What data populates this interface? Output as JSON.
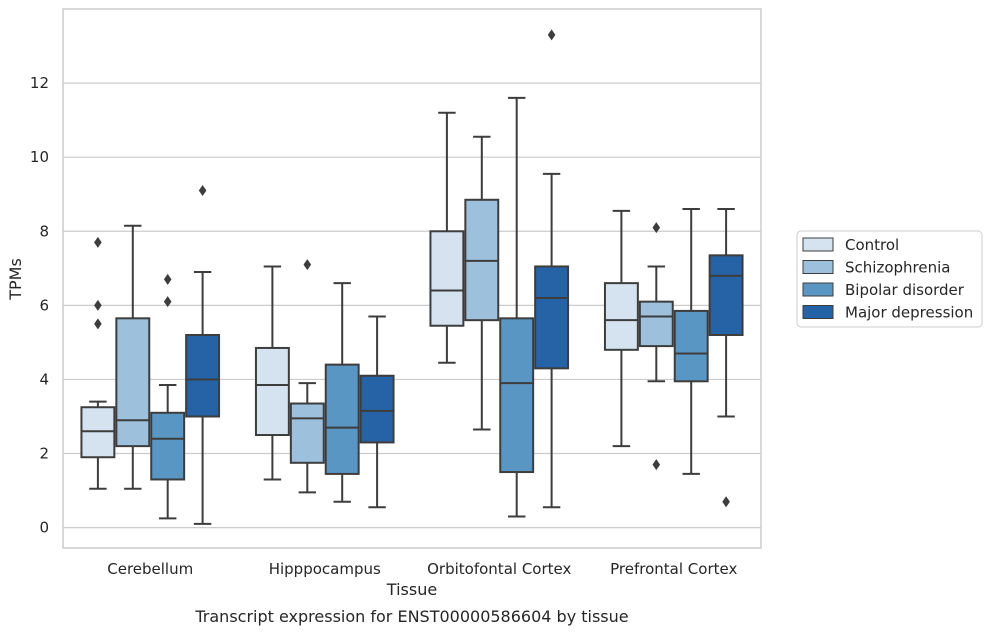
{
  "chart_data": {
    "type": "box",
    "xlabel": "Tissue",
    "ylabel": "TPMs",
    "caption": "Transcript expression for ENST00000586604 by tissue",
    "ylim": [
      -0.55,
      14.0
    ],
    "yticks": [
      0,
      2,
      4,
      6,
      8,
      10,
      12
    ],
    "grid": true,
    "legend_position": "right",
    "categories": [
      "Cerebellum",
      "Hipppocampus",
      "Orbitofontal Cortex",
      "Prefrontal Cortex"
    ],
    "series": [
      {
        "name": "Control",
        "color": "#d5e3f1",
        "boxes": [
          {
            "whislo": 1.05,
            "q1": 1.9,
            "med": 2.6,
            "q3": 3.25,
            "whishi": 3.4,
            "fliers": [
              5.5,
              6.0,
              7.7
            ]
          },
          {
            "whislo": 1.3,
            "q1": 2.5,
            "med": 3.85,
            "q3": 4.85,
            "whishi": 7.05,
            "fliers": []
          },
          {
            "whislo": 4.45,
            "q1": 5.45,
            "med": 6.4,
            "q3": 8.0,
            "whishi": 11.2,
            "fliers": []
          },
          {
            "whislo": 2.2,
            "q1": 4.8,
            "med": 5.6,
            "q3": 6.6,
            "whishi": 8.55,
            "fliers": []
          }
        ]
      },
      {
        "name": "Schizophrenia",
        "color": "#9dc1dc",
        "boxes": [
          {
            "whislo": 1.05,
            "q1": 2.2,
            "med": 2.9,
            "q3": 5.65,
            "whishi": 8.15,
            "fliers": []
          },
          {
            "whislo": 0.95,
            "q1": 1.75,
            "med": 2.95,
            "q3": 3.35,
            "whishi": 3.9,
            "fliers": [
              7.1
            ]
          },
          {
            "whislo": 2.65,
            "q1": 5.6,
            "med": 7.2,
            "q3": 8.85,
            "whishi": 10.55,
            "fliers": []
          },
          {
            "whislo": 3.95,
            "q1": 4.9,
            "med": 5.7,
            "q3": 6.1,
            "whishi": 7.05,
            "fliers": [
              1.7,
              8.1
            ]
          }
        ]
      },
      {
        "name": "Bipolar disorder",
        "color": "#5a96c4",
        "boxes": [
          {
            "whislo": 0.25,
            "q1": 1.3,
            "med": 2.4,
            "q3": 3.1,
            "whishi": 3.85,
            "fliers": [
              6.1,
              6.7
            ]
          },
          {
            "whislo": 0.7,
            "q1": 1.45,
            "med": 2.7,
            "q3": 4.4,
            "whishi": 6.6,
            "fliers": []
          },
          {
            "whislo": 0.3,
            "q1": 1.5,
            "med": 3.9,
            "q3": 5.65,
            "whishi": 11.6,
            "fliers": []
          },
          {
            "whislo": 1.45,
            "q1": 3.95,
            "med": 4.7,
            "q3": 5.85,
            "whishi": 8.6,
            "fliers": []
          }
        ]
      },
      {
        "name": "Major depression",
        "color": "#2563a6",
        "boxes": [
          {
            "whislo": 0.1,
            "q1": 3.0,
            "med": 4.0,
            "q3": 5.2,
            "whishi": 6.9,
            "fliers": [
              9.1
            ]
          },
          {
            "whislo": 0.55,
            "q1": 2.3,
            "med": 3.15,
            "q3": 4.1,
            "whishi": 5.7,
            "fliers": []
          },
          {
            "whislo": 0.55,
            "q1": 4.3,
            "med": 6.2,
            "q3": 7.05,
            "whishi": 9.55,
            "fliers": [
              13.3
            ]
          },
          {
            "whislo": 3.0,
            "q1": 5.2,
            "med": 6.8,
            "q3": 7.35,
            "whishi": 8.6,
            "fliers": [
              0.7
            ]
          }
        ]
      }
    ]
  }
}
